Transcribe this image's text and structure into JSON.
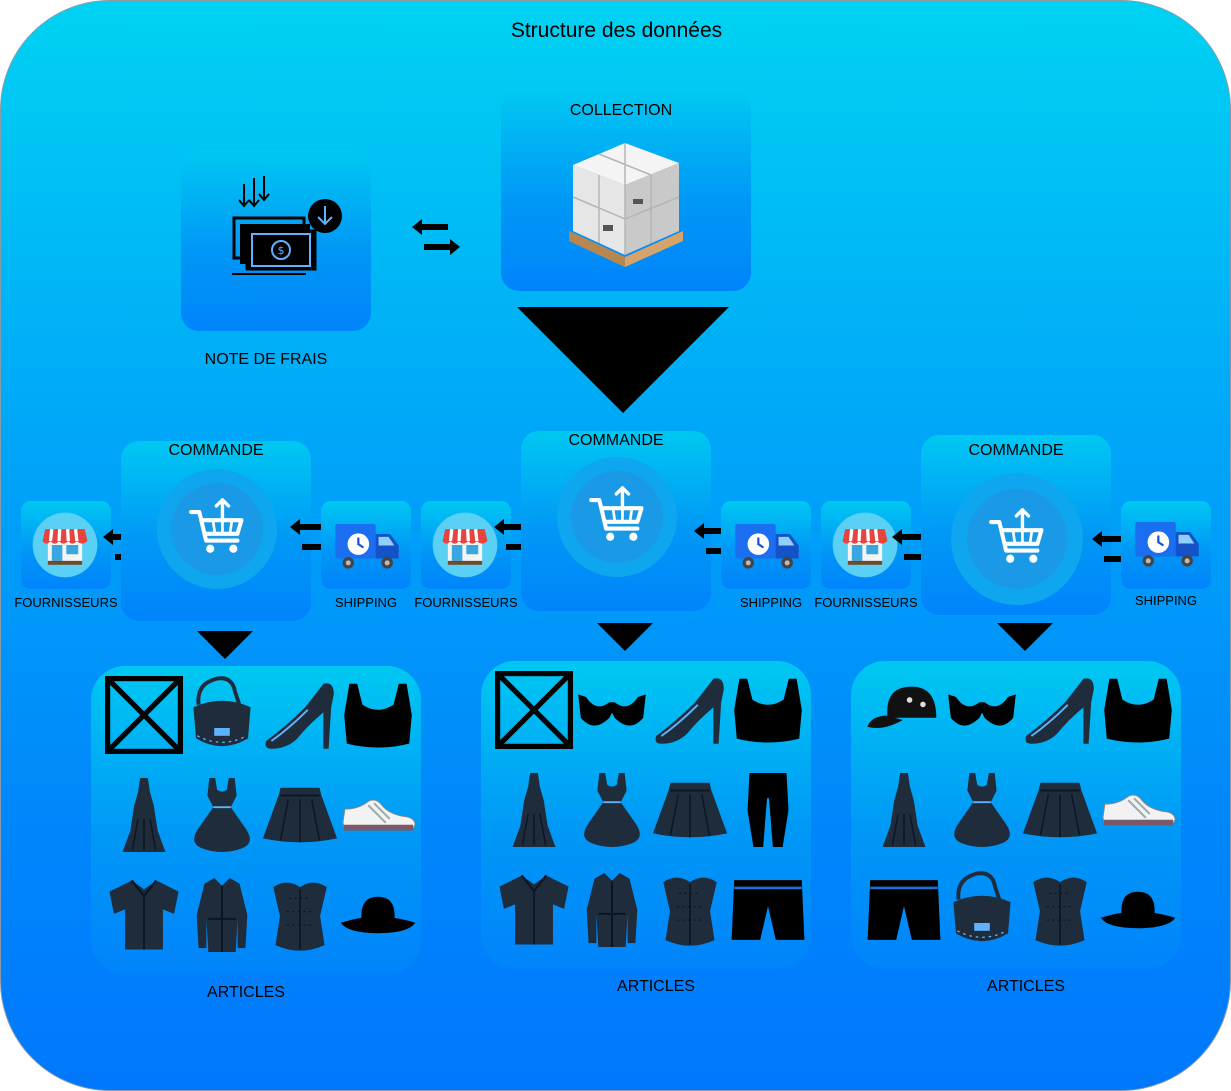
{
  "title": "Structure des données",
  "nodes": {
    "note_de_frais": "NOTE DE FRAIS",
    "collection": "COLLECTION",
    "commande": "COMMANDE",
    "fournisseurs": "FOURNISSEURS",
    "shipping": "SHIPPING",
    "articles": "ARTICLES"
  },
  "icons": {
    "note": "money-download-icon",
    "collection": "pallet-boxes-icon",
    "commande": "cart-upload-icon",
    "fournisseurs": "shop-icon",
    "shipping": "delivery-truck-icon"
  },
  "article_groups": [
    {
      "items": [
        "placeholder-crossed-box",
        "handbag",
        "high-heel",
        "crop-top",
        "long-dress",
        "party-dress",
        "pleated-skirt",
        "sneaker",
        "shirt",
        "coat",
        "corset",
        "hat"
      ]
    },
    {
      "items": [
        "placeholder-crossed-box",
        "bra",
        "high-heel",
        "crop-top",
        "long-dress",
        "party-dress",
        "pleated-skirt",
        "trousers",
        "shirt",
        "coat",
        "corset",
        "shorts"
      ]
    },
    {
      "items": [
        "cap",
        "bra",
        "high-heel",
        "crop-top",
        "long-dress",
        "party-dress",
        "pleated-skirt",
        "sneaker",
        "shorts",
        "handbag",
        "corset",
        "hat"
      ]
    }
  ],
  "colors": {
    "background_top": "#00d2f2",
    "background_bottom": "#0078fd",
    "icon_dark": "#1e2c3c",
    "arrow": "#000000"
  }
}
